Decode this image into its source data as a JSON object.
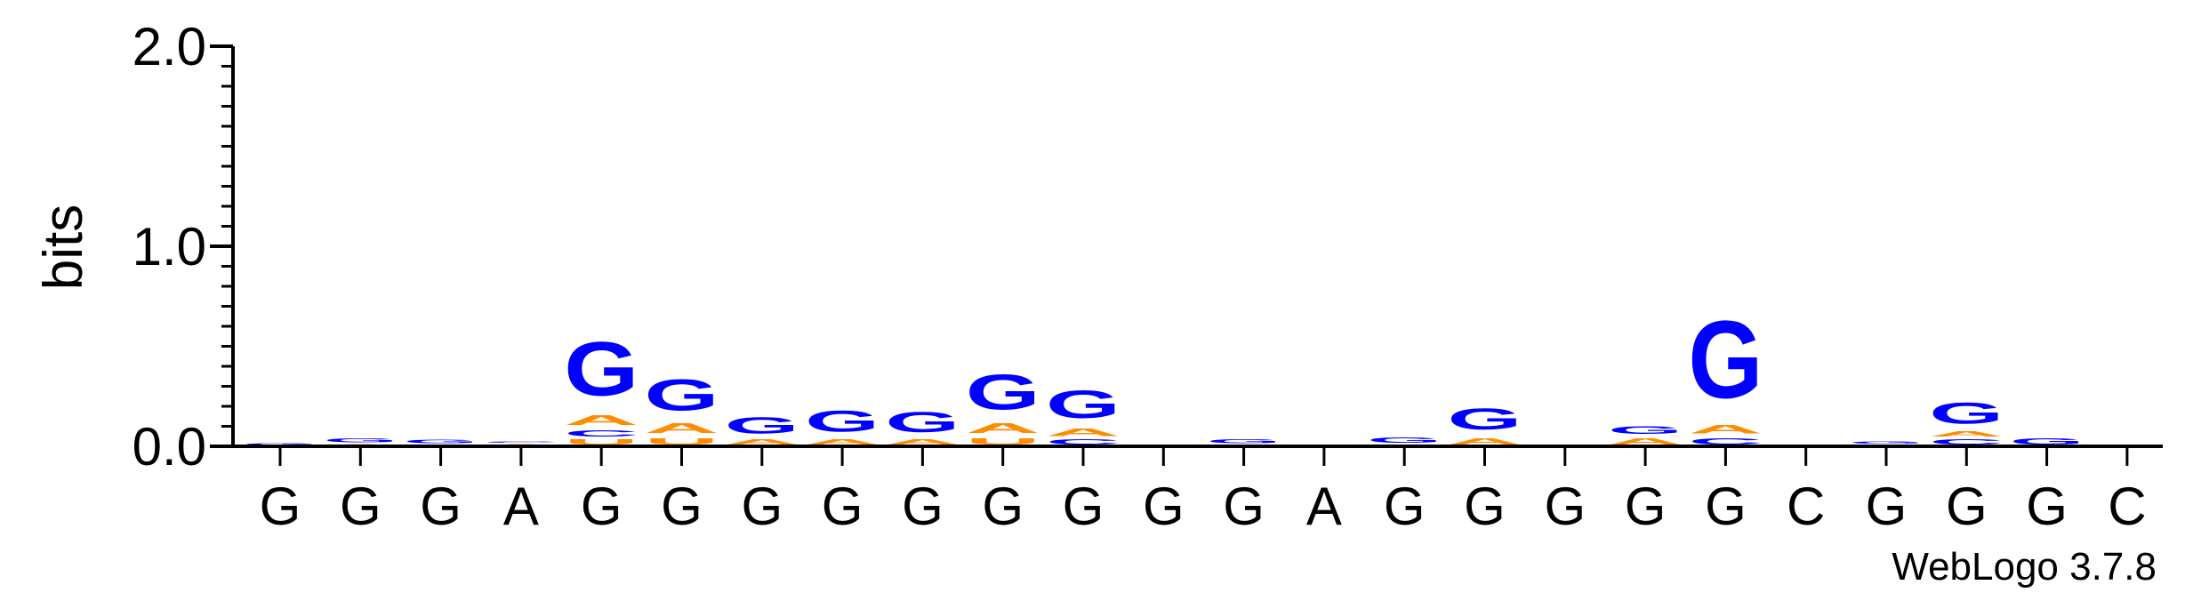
{
  "chart_data": {
    "type": "sequence-logo",
    "ylabel": "bits",
    "ylim": [
      0,
      2.0
    ],
    "yticks": [
      {
        "value": 0,
        "label": "0.0"
      },
      {
        "value": 1,
        "label": "1.0"
      },
      {
        "value": 2,
        "label": "2.0"
      }
    ],
    "positions": [
      "G",
      "G",
      "G",
      "A",
      "G",
      "G",
      "G",
      "G",
      "G",
      "G",
      "G",
      "G",
      "G",
      "A",
      "G",
      "G",
      "G",
      "G",
      "G",
      "C",
      "G",
      "G",
      "G",
      "C"
    ],
    "colors": {
      "G": "#0000ff",
      "A": "#ff8c00",
      "U": "#ff8c00",
      "C": "#0000ff"
    },
    "stacks": [
      [
        {
          "l": "G",
          "h": 0.02
        }
      ],
      [
        {
          "l": "A",
          "h": 0.015
        },
        {
          "l": "G",
          "h": 0.03
        }
      ],
      [
        {
          "l": "A",
          "h": 0.01
        },
        {
          "l": "G",
          "h": 0.025
        }
      ],
      [
        {
          "l": "A",
          "h": 0.015
        },
        {
          "l": "C",
          "h": 0.01
        }
      ],
      [
        {
          "l": "U",
          "h": 0.04
        },
        {
          "l": "C",
          "h": 0.05
        },
        {
          "l": "A",
          "h": 0.08
        },
        {
          "l": "G",
          "h": 0.43
        }
      ],
      [
        {
          "l": "U",
          "h": 0.05
        },
        {
          "l": "A",
          "h": 0.08
        },
        {
          "l": "G",
          "h": 0.25
        }
      ],
      [
        {
          "l": "A",
          "h": 0.04
        },
        {
          "l": "G",
          "h": 0.13
        }
      ],
      [
        {
          "l": "A",
          "h": 0.04
        },
        {
          "l": "G",
          "h": 0.17
        }
      ],
      [
        {
          "l": "A",
          "h": 0.04
        },
        {
          "l": "G",
          "h": 0.16
        }
      ],
      [
        {
          "l": "U",
          "h": 0.05
        },
        {
          "l": "A",
          "h": 0.08
        },
        {
          "l": "G",
          "h": 0.28
        }
      ],
      [
        {
          "l": "C",
          "h": 0.04
        },
        {
          "l": "A",
          "h": 0.06
        },
        {
          "l": "G",
          "h": 0.22
        }
      ],
      [],
      [
        {
          "l": "C",
          "h": 0.01
        },
        {
          "l": "G",
          "h": 0.03
        }
      ],
      [],
      [
        {
          "l": "A",
          "h": 0.01
        },
        {
          "l": "G",
          "h": 0.04
        }
      ],
      [
        {
          "l": "A",
          "h": 0.05
        },
        {
          "l": "G",
          "h": 0.17
        }
      ],
      [],
      [
        {
          "l": "A",
          "h": 0.05
        },
        {
          "l": "G",
          "h": 0.06
        }
      ],
      [
        {
          "l": "C",
          "h": 0.05
        },
        {
          "l": "A",
          "h": 0.07
        },
        {
          "l": "G",
          "h": 0.62
        }
      ],
      [],
      [
        {
          "l": "A",
          "h": 0.01
        },
        {
          "l": "G",
          "h": 0.02
        }
      ],
      [
        {
          "l": "C",
          "h": 0.04
        },
        {
          "l": "A",
          "h": 0.04
        },
        {
          "l": "G",
          "h": 0.17
        }
      ],
      [
        {
          "l": "G",
          "h": 0.05
        }
      ],
      []
    ]
  },
  "footer": {
    "credit": "WebLogo 3.7.8"
  }
}
